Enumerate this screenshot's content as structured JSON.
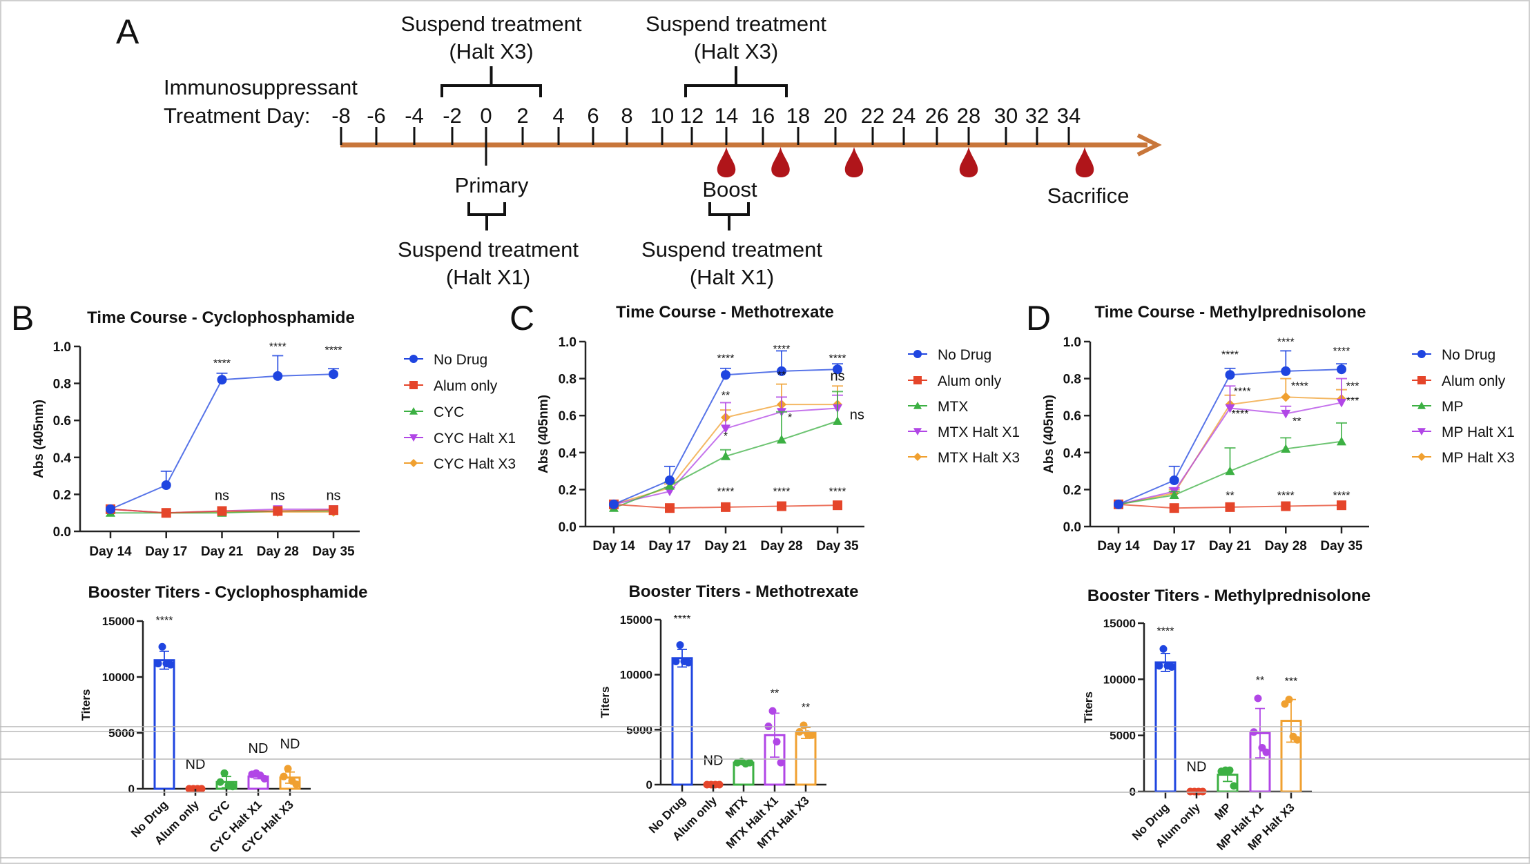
{
  "timeline": {
    "panel_label": "A",
    "axis_label": [
      "Immunosuppressant",
      "Treatment Day:"
    ],
    "days": [
      -8,
      -6,
      -4,
      -2,
      0,
      2,
      4,
      6,
      8,
      10,
      12,
      14,
      16,
      18,
      20,
      22,
      24,
      26,
      28,
      30,
      32,
      34
    ],
    "axis_color": "#c8763a",
    "blood_draw_color": "#b0151a",
    "blood_draw_days": [
      14,
      17,
      21,
      28,
      35
    ],
    "top_brackets": [
      {
        "lines": [
          "Suspend treatment",
          "(Halt X3)"
        ]
      },
      {
        "lines": [
          "Suspend treatment",
          "(Halt X3)"
        ]
      }
    ],
    "bottom_brackets": [
      {
        "lines": [
          "Suspend treatment",
          "(Halt X1)"
        ]
      },
      {
        "lines": [
          "Suspend treatment",
          "(Halt X1)"
        ]
      }
    ],
    "events": [
      {
        "label": "Primary",
        "day": 0
      },
      {
        "label": "Boost",
        "day": 14
      },
      {
        "label": "Sacrifice",
        "day": 35
      }
    ]
  },
  "chart_data": [
    {
      "type": "line",
      "panel_label": "B",
      "title": "Time Course - Cyclophosphamide",
      "ylabel": "Abs (405nm)",
      "xlabel": "",
      "ylim": [
        0,
        1.0
      ],
      "yticks": [
        "0.0",
        "0.2",
        "0.4",
        "0.6",
        "0.8",
        "1.0"
      ],
      "categories": [
        "Day 14",
        "Day 17",
        "Day 21",
        "Day 28",
        "Day 35"
      ],
      "legend": "right",
      "grid": false,
      "series": [
        {
          "name": "No Drug",
          "color": "#1f45e0",
          "marker": "circle",
          "values": [
            0.12,
            0.25,
            0.82,
            0.84,
            0.85
          ],
          "error": [
            0.01,
            0.075,
            0.035,
            0.11,
            0.03
          ]
        },
        {
          "name": "Alum only",
          "color": "#e5452a",
          "marker": "square",
          "values": [
            0.12,
            0.1,
            0.11,
            0.11,
            0.115
          ],
          "error": [
            0.01,
            0.01,
            0.01,
            0.01,
            0.01
          ]
        },
        {
          "name": "CYC",
          "color": "#3cb043",
          "marker": "triangle-up",
          "values": [
            0.1,
            0.1,
            0.1,
            0.11,
            0.11
          ],
          "error": [
            0.01,
            0.01,
            0.01,
            0.01,
            0.01
          ]
        },
        {
          "name": "CYC Halt X1",
          "color": "#b146e6",
          "marker": "triangle-down",
          "values": [
            0.12,
            0.1,
            0.11,
            0.12,
            0.12
          ],
          "error": [
            0.01,
            0.01,
            0.01,
            0.01,
            0.01
          ]
        },
        {
          "name": "CYC Halt X3",
          "color": "#f0a030",
          "marker": "diamond",
          "values": [
            0.12,
            0.1,
            0.105,
            0.105,
            0.105
          ],
          "error": [
            0.01,
            0.01,
            0.01,
            0.01,
            0.01
          ]
        }
      ],
      "annotations": [
        {
          "x": "Day 21",
          "y": 0.89,
          "text": "****"
        },
        {
          "x": "Day 28",
          "y": 0.98,
          "text": "****"
        },
        {
          "x": "Day 35",
          "y": 0.96,
          "text": "****"
        },
        {
          "x": "Day 21",
          "y": 0.17,
          "text": "ns"
        },
        {
          "x": "Day 28",
          "y": 0.17,
          "text": "ns"
        },
        {
          "x": "Day 35",
          "y": 0.17,
          "text": "ns"
        }
      ]
    },
    {
      "type": "line",
      "panel_label": "C",
      "title": "Time Course - Methotrexate",
      "ylabel": "Abs (405nm)",
      "xlabel": "",
      "ylim": [
        0,
        1.0
      ],
      "yticks": [
        "0.0",
        "0.2",
        "0.4",
        "0.6",
        "0.8",
        "1.0"
      ],
      "categories": [
        "Day 14",
        "Day 17",
        "Day 21",
        "Day 28",
        "Day 35"
      ],
      "legend": "right",
      "grid": false,
      "series": [
        {
          "name": "No Drug",
          "color": "#1f45e0",
          "marker": "circle",
          "values": [
            0.12,
            0.25,
            0.82,
            0.84,
            0.85
          ],
          "error": [
            0.01,
            0.075,
            0.035,
            0.11,
            0.03
          ]
        },
        {
          "name": "Alum only",
          "color": "#e5452a",
          "marker": "square",
          "values": [
            0.12,
            0.1,
            0.105,
            0.11,
            0.115
          ],
          "error": [
            0.01,
            0.01,
            0.01,
            0.01,
            0.01
          ]
        },
        {
          "name": "MTX",
          "color": "#3cb043",
          "marker": "triangle-up",
          "values": [
            0.1,
            0.22,
            0.38,
            0.47,
            0.57
          ],
          "error": [
            0.01,
            0.02,
            0.035,
            0.15,
            0.16
          ]
        },
        {
          "name": "MTX Halt X1",
          "color": "#b146e6",
          "marker": "triangle-down",
          "values": [
            0.12,
            0.19,
            0.53,
            0.62,
            0.64
          ],
          "error": [
            0.01,
            0.02,
            0.14,
            0.08,
            0.07
          ]
        },
        {
          "name": "MTX Halt X3",
          "color": "#f0a030",
          "marker": "diamond",
          "values": [
            0.12,
            0.21,
            0.59,
            0.66,
            0.66
          ],
          "error": [
            0.01,
            0.02,
            0.04,
            0.11,
            0.1
          ]
        }
      ],
      "annotations": [
        {
          "x": "Day 21",
          "y": 0.89,
          "text": "****"
        },
        {
          "x": "Day 28",
          "y": 0.94,
          "text": "****"
        },
        {
          "x": "Day 35",
          "y": 0.89,
          "text": "****"
        },
        {
          "x": "Day 21",
          "y": 0.69,
          "text": "**"
        },
        {
          "x": "Day 21",
          "y": 0.47,
          "text": "*"
        },
        {
          "x": "Day 28",
          "y": 0.8,
          "text": "**"
        },
        {
          "x": "Day 28",
          "y": 0.57,
          "text": "*",
          "dx": 0.15
        },
        {
          "x": "Day 35",
          "y": 0.79,
          "text": "ns",
          "large": true
        },
        {
          "x": "Day 35",
          "y": 0.58,
          "text": "ns",
          "large": true,
          "dx": 0.35
        },
        {
          "x": "Day 21",
          "y": 0.17,
          "text": "****"
        },
        {
          "x": "Day 28",
          "y": 0.17,
          "text": "****"
        },
        {
          "x": "Day 35",
          "y": 0.17,
          "text": "****"
        }
      ]
    },
    {
      "type": "line",
      "panel_label": "D",
      "title": "Time Course - Methylprednisolone",
      "ylabel": "Abs (405nm)",
      "xlabel": "",
      "ylim": [
        0,
        1.0
      ],
      "yticks": [
        "0.0",
        "0.2",
        "0.4",
        "0.6",
        "0.8",
        "1.0"
      ],
      "categories": [
        "Day 14",
        "Day 17",
        "Day 21",
        "Day 28",
        "Day 35"
      ],
      "legend": "right",
      "grid": false,
      "series": [
        {
          "name": "No Drug",
          "color": "#1f45e0",
          "marker": "circle",
          "values": [
            0.12,
            0.25,
            0.82,
            0.84,
            0.85
          ],
          "error": [
            0.01,
            0.075,
            0.035,
            0.11,
            0.03
          ]
        },
        {
          "name": "Alum only",
          "color": "#e5452a",
          "marker": "square",
          "values": [
            0.12,
            0.1,
            0.105,
            0.11,
            0.115
          ],
          "error": [
            0.01,
            0.01,
            0.01,
            0.01,
            0.01
          ]
        },
        {
          "name": "MP",
          "color": "#3cb043",
          "marker": "triangle-up",
          "values": [
            0.12,
            0.17,
            0.3,
            0.42,
            0.46
          ],
          "error": [
            0.01,
            0.02,
            0.125,
            0.06,
            0.1
          ]
        },
        {
          "name": "MP Halt X1",
          "color": "#b146e6",
          "marker": "triangle-down",
          "values": [
            0.12,
            0.19,
            0.64,
            0.61,
            0.67
          ],
          "error": [
            0.01,
            0.02,
            0.12,
            0.04,
            0.13
          ]
        },
        {
          "name": "MP Halt X3",
          "color": "#f0a030",
          "marker": "diamond",
          "values": [
            0.12,
            0.18,
            0.66,
            0.7,
            0.69
          ],
          "error": [
            0.01,
            0.02,
            0.05,
            0.1,
            0.05
          ]
        }
      ],
      "annotations": [
        {
          "x": "Day 21",
          "y": 0.91,
          "text": "****"
        },
        {
          "x": "Day 28",
          "y": 0.98,
          "text": "****"
        },
        {
          "x": "Day 35",
          "y": 0.93,
          "text": "****"
        },
        {
          "x": "Day 21",
          "y": 0.71,
          "text": "****",
          "dx": 0.22
        },
        {
          "x": "Day 21",
          "y": 0.59,
          "text": "****",
          "dx": 0.18
        },
        {
          "x": "Day 28",
          "y": 0.74,
          "text": "****",
          "dx": 0.25
        },
        {
          "x": "Day 28",
          "y": 0.55,
          "text": "**",
          "dx": 0.2
        },
        {
          "x": "Day 35",
          "y": 0.74,
          "text": "***",
          "dx": 0.2
        },
        {
          "x": "Day 35",
          "y": 0.66,
          "text": "***",
          "dx": 0.2
        },
        {
          "x": "Day 21",
          "y": 0.15,
          "text": "**"
        },
        {
          "x": "Day 28",
          "y": 0.15,
          "text": "****"
        },
        {
          "x": "Day 35",
          "y": 0.15,
          "text": "****"
        }
      ]
    },
    {
      "type": "bar",
      "title": "Booster Titers - Cyclophosphamide",
      "ylabel": "Titers",
      "xlabel": "",
      "ylim": [
        0,
        15000
      ],
      "yticks": [
        "0",
        "5000",
        "10000",
        "15000"
      ],
      "categories": [
        "No Drug",
        "Alum only",
        "CYC",
        "CYC Halt X1",
        "CYC Halt X3"
      ],
      "colors": [
        "#1f45e0",
        "#e5452a",
        "#3cb043",
        "#b146e6",
        "#f0a030"
      ],
      "values": [
        11500,
        0,
        600,
        1100,
        1000
      ],
      "error": [
        800,
        0,
        500,
        200,
        500
      ],
      "points": [
        [
          12700,
          11200,
          11200,
          11100
        ],
        [
          0,
          0,
          0,
          0
        ],
        [
          1400,
          600,
          300,
          200
        ],
        [
          1400,
          1300,
          1200,
          900
        ],
        [
          1800,
          1100,
          700,
          400
        ]
      ],
      "labels": [
        "****",
        "ND",
        "",
        "ND",
        "ND"
      ]
    },
    {
      "type": "bar",
      "title": "Booster Titers - Methotrexate",
      "ylabel": "Titers",
      "xlabel": "",
      "ylim": [
        0,
        15000
      ],
      "yticks": [
        "0",
        "5000",
        "10000",
        "15000"
      ],
      "categories": [
        "No Drug",
        "Alum only",
        "MTX",
        "MTX Halt X1",
        "MTX Halt X3"
      ],
      "colors": [
        "#1f45e0",
        "#e5452a",
        "#3cb043",
        "#b146e6",
        "#f0a030"
      ],
      "values": [
        11500,
        0,
        2000,
        4500,
        4700
      ],
      "error": [
        800,
        0,
        150,
        2000,
        500
      ],
      "points": [
        [
          12700,
          11200,
          11200,
          11100
        ],
        [
          0,
          0,
          0,
          0
        ],
        [
          2100,
          2000,
          1900,
          2000
        ],
        [
          6700,
          5300,
          3900,
          2000
        ],
        [
          5400,
          4800,
          4600,
          4500
        ]
      ],
      "labels": [
        "****",
        "ND",
        "",
        "**",
        "**"
      ]
    },
    {
      "type": "bar",
      "title": "Booster Titers - Methylprednisolone",
      "ylabel": "Titers",
      "xlabel": "",
      "ylim": [
        0,
        15000
      ],
      "yticks": [
        "0",
        "5000",
        "10000",
        "15000"
      ],
      "categories": [
        "No Drug",
        "Alum only",
        "MP",
        "MP Halt X1",
        "MP Halt X3"
      ],
      "colors": [
        "#1f45e0",
        "#e5452a",
        "#3cb043",
        "#b146e6",
        "#f0a030"
      ],
      "values": [
        11500,
        0,
        1500,
        5200,
        6300
      ],
      "error": [
        800,
        0,
        600,
        2200,
        1900
      ],
      "points": [
        [
          12700,
          11200,
          11200,
          11100
        ],
        [
          0,
          0,
          0,
          0
        ],
        [
          1900,
          1800,
          1900,
          500
        ],
        [
          8300,
          5300,
          3900,
          3500
        ],
        [
          8200,
          7800,
          4900,
          4600
        ]
      ],
      "labels": [
        "****",
        "ND",
        "",
        "**",
        "***"
      ]
    }
  ]
}
